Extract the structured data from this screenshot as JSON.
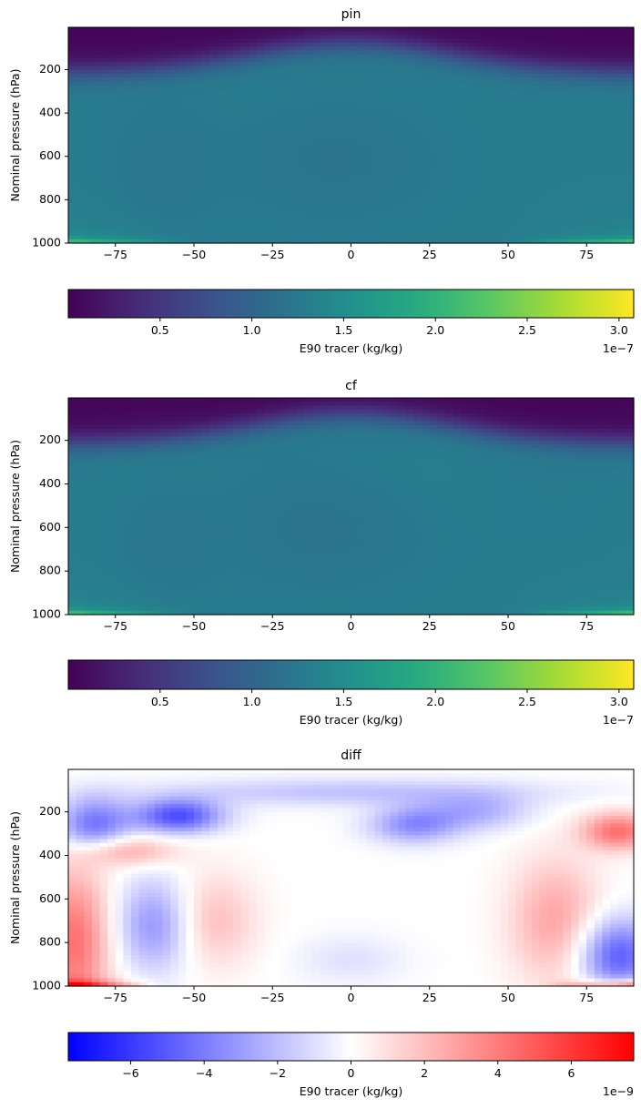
{
  "chart_data": [
    {
      "type": "heatmap",
      "title": "pin",
      "xlabel": "",
      "ylabel": "Nominal pressure (hPa)",
      "xlim": [
        -90,
        90
      ],
      "ylim": [
        1000,
        5
      ],
      "xticks": [
        -75,
        -50,
        -25,
        0,
        25,
        50,
        75
      ],
      "xticklabels": [
        "−75",
        "−50",
        "−25",
        "0",
        "25",
        "50",
        "75"
      ],
      "yticks": [
        200,
        400,
        600,
        800,
        1000
      ],
      "yticklabels": [
        "200",
        "400",
        "600",
        "800",
        "1000"
      ],
      "colormap": "viridis",
      "colorbar": {
        "label": "E90 tracer (kg/kg)",
        "range": [
          0.0,
          3.08e-07
        ],
        "ticks": [
          0.5,
          1.0,
          1.5,
          2.0,
          2.5,
          3.0
        ],
        "ticklabels": [
          "0.5",
          "1.0",
          "1.5",
          "2.0",
          "2.5",
          "3.0"
        ],
        "offset": "1e−7"
      }
    },
    {
      "type": "heatmap",
      "title": "cf",
      "xlabel": "",
      "ylabel": "Nominal pressure (hPa)",
      "xlim": [
        -90,
        90
      ],
      "ylim": [
        1000,
        5
      ],
      "xticks": [
        -75,
        -50,
        -25,
        0,
        25,
        50,
        75
      ],
      "xticklabels": [
        "−75",
        "−50",
        "−25",
        "0",
        "25",
        "50",
        "75"
      ],
      "yticks": [
        200,
        400,
        600,
        800,
        1000
      ],
      "yticklabels": [
        "200",
        "400",
        "600",
        "800",
        "1000"
      ],
      "colormap": "viridis",
      "colorbar": {
        "label": "E90 tracer (kg/kg)",
        "range": [
          0.0,
          3.08e-07
        ],
        "ticks": [
          0.5,
          1.0,
          1.5,
          2.0,
          2.5,
          3.0
        ],
        "ticklabels": [
          "0.5",
          "1.0",
          "1.5",
          "2.0",
          "2.5",
          "3.0"
        ],
        "offset": "1e−7"
      }
    },
    {
      "type": "heatmap",
      "title": "diff",
      "xlabel": "",
      "ylabel": "Nominal pressure (hPa)",
      "xlim": [
        -90,
        90
      ],
      "ylim": [
        1000,
        5
      ],
      "xticks": [
        -75,
        -50,
        -25,
        0,
        25,
        50,
        75
      ],
      "xticklabels": [
        "−75",
        "−50",
        "−25",
        "0",
        "25",
        "50",
        "75"
      ],
      "yticks": [
        200,
        400,
        600,
        800,
        1000
      ],
      "yticklabels": [
        "200",
        "400",
        "600",
        "800",
        "1000"
      ],
      "colormap": "bwr",
      "colorbar": {
        "label": "E90 tracer (kg/kg)",
        "range": [
          -7.7e-09,
          7.7e-09
        ],
        "ticks": [
          -6,
          -4,
          -2,
          0,
          2,
          4,
          6
        ],
        "ticklabels": [
          "−6",
          "−4",
          "−2",
          "0",
          "2",
          "4",
          "6"
        ],
        "offset": "1e−9"
      }
    }
  ]
}
